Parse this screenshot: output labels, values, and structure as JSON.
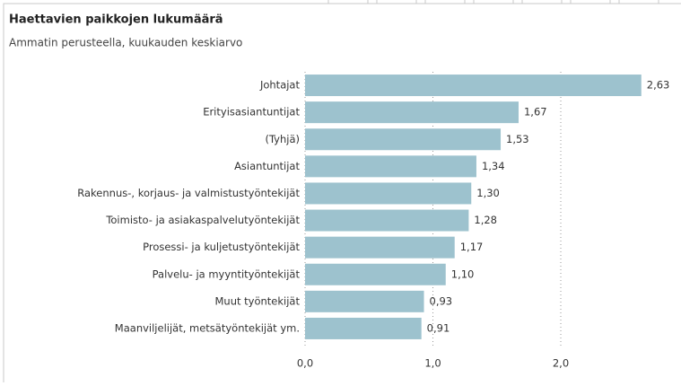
{
  "chart_data": {
    "type": "barh",
    "title": "Haettavien paikkojen lukumäärä",
    "subtitle": "Ammatin perusteella, kuukauden keskiarvo",
    "categories": [
      "Johtajat",
      "Erityisasiantuntijat",
      "(Tyhjä)",
      "Asiantuntijat",
      "Rakennus-, korjaus- ja valmistustyöntekijät",
      "Toimisto- ja asiakaspalvelutyöntekijät",
      "Prosessi- ja kuljetustyöntekijät",
      "Palvelu- ja myyntityöntekijät",
      "Muut työntekijät",
      "Maanviljelijät, metsätyöntekijät ym."
    ],
    "values": [
      2.63,
      1.67,
      1.53,
      1.34,
      1.3,
      1.28,
      1.17,
      1.1,
      0.93,
      0.91
    ],
    "value_labels": [
      "2,63",
      "1,67",
      "1,53",
      "1,34",
      "1,30",
      "1,28",
      "1,17",
      "1,10",
      "0,93",
      "0,91"
    ],
    "color": "#9dc2ce",
    "xlim": [
      0,
      2.7
    ],
    "xticks": [
      {
        "value": 0,
        "label": "0,0"
      },
      {
        "value": 1,
        "label": "1,0"
      },
      {
        "value": 2,
        "label": "2,0"
      }
    ],
    "grid": true
  }
}
